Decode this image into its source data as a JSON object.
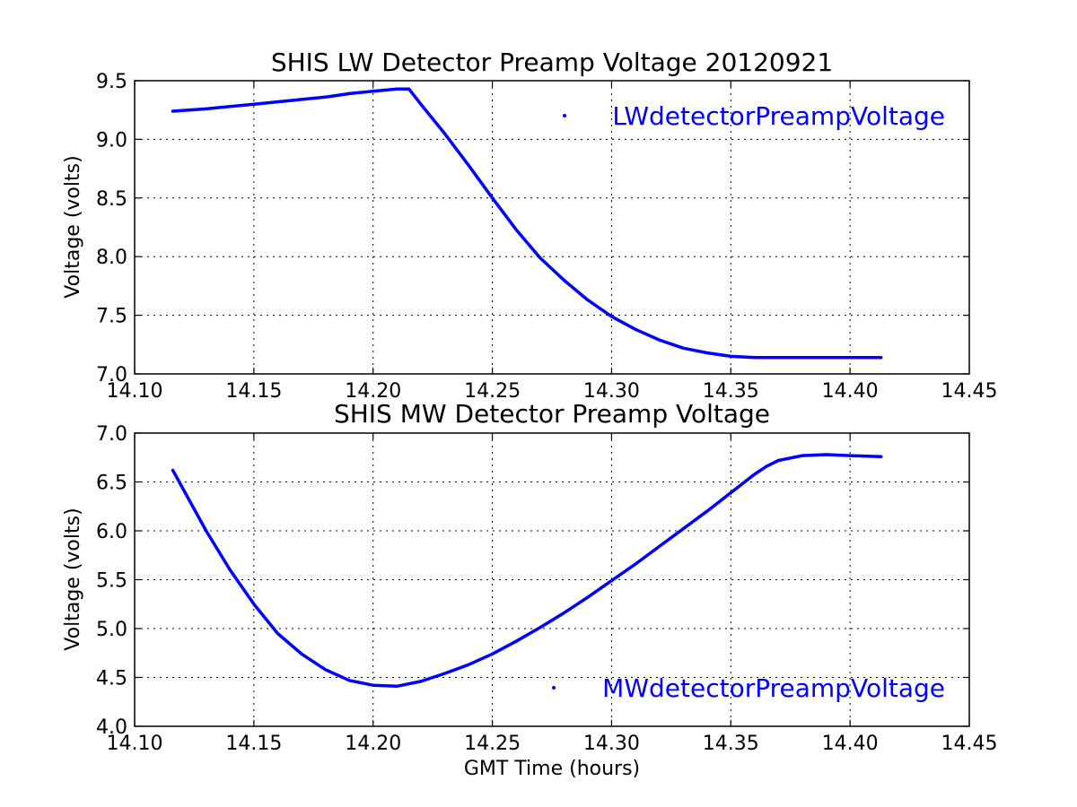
{
  "chart_data": [
    {
      "type": "scatter",
      "title": "SHIS LW Detector Preamp Voltage 20120921",
      "xlabel": "",
      "ylabel": "Voltage (volts)",
      "xlim": [
        14.1,
        14.45
      ],
      "ylim": [
        7.0,
        9.5
      ],
      "x_ticks": [
        "14.10",
        "14.15",
        "14.20",
        "14.25",
        "14.30",
        "14.35",
        "14.40",
        "14.45"
      ],
      "y_ticks": [
        "7.0",
        "7.5",
        "8.0",
        "8.5",
        "9.0",
        "9.5"
      ],
      "grid": true,
      "legend": {
        "position": "top-right"
      },
      "series": [
        {
          "name": "LWdetectorPreampVoltage",
          "color": "#0000ff",
          "marker": "point",
          "x": [
            14.116,
            14.13,
            14.15,
            14.17,
            14.18,
            14.19,
            14.2,
            14.21,
            14.215,
            14.22,
            14.23,
            14.24,
            14.25,
            14.26,
            14.27,
            14.28,
            14.29,
            14.3,
            14.31,
            14.32,
            14.33,
            14.34,
            14.35,
            14.36,
            14.37,
            14.38,
            14.39,
            14.4,
            14.413
          ],
          "y": [
            9.24,
            9.26,
            9.3,
            9.34,
            9.36,
            9.39,
            9.41,
            9.43,
            9.43,
            9.3,
            9.05,
            8.78,
            8.5,
            8.23,
            7.99,
            7.8,
            7.63,
            7.49,
            7.38,
            7.29,
            7.22,
            7.18,
            7.15,
            7.14,
            7.14,
            7.14,
            7.14,
            7.14,
            7.14
          ]
        }
      ]
    },
    {
      "type": "scatter",
      "title": "SHIS MW Detector Preamp Voltage",
      "xlabel": "GMT Time (hours)",
      "ylabel": "Voltage (volts)",
      "xlim": [
        14.1,
        14.45
      ],
      "ylim": [
        4.0,
        7.0
      ],
      "x_ticks": [
        "14.10",
        "14.15",
        "14.20",
        "14.25",
        "14.30",
        "14.35",
        "14.40",
        "14.45"
      ],
      "y_ticks": [
        "4.0",
        "4.5",
        "5.0",
        "5.5",
        "6.0",
        "6.5",
        "7.0"
      ],
      "grid": true,
      "legend": {
        "position": "bottom-right"
      },
      "series": [
        {
          "name": "MWdetectorPreampVoltage",
          "color": "#0000ff",
          "marker": "point",
          "x": [
            14.116,
            14.13,
            14.14,
            14.15,
            14.16,
            14.17,
            14.18,
            14.19,
            14.2,
            14.21,
            14.22,
            14.23,
            14.24,
            14.25,
            14.26,
            14.27,
            14.28,
            14.29,
            14.3,
            14.31,
            14.32,
            14.33,
            14.34,
            14.35,
            14.36,
            14.365,
            14.37,
            14.38,
            14.39,
            14.4,
            14.413
          ],
          "y": [
            6.62,
            6.0,
            5.6,
            5.25,
            4.95,
            4.74,
            4.58,
            4.47,
            4.42,
            4.41,
            4.46,
            4.54,
            4.63,
            4.74,
            4.87,
            5.01,
            5.16,
            5.32,
            5.49,
            5.66,
            5.84,
            6.02,
            6.2,
            6.39,
            6.58,
            6.66,
            6.72,
            6.77,
            6.78,
            6.77,
            6.76
          ]
        }
      ]
    }
  ]
}
